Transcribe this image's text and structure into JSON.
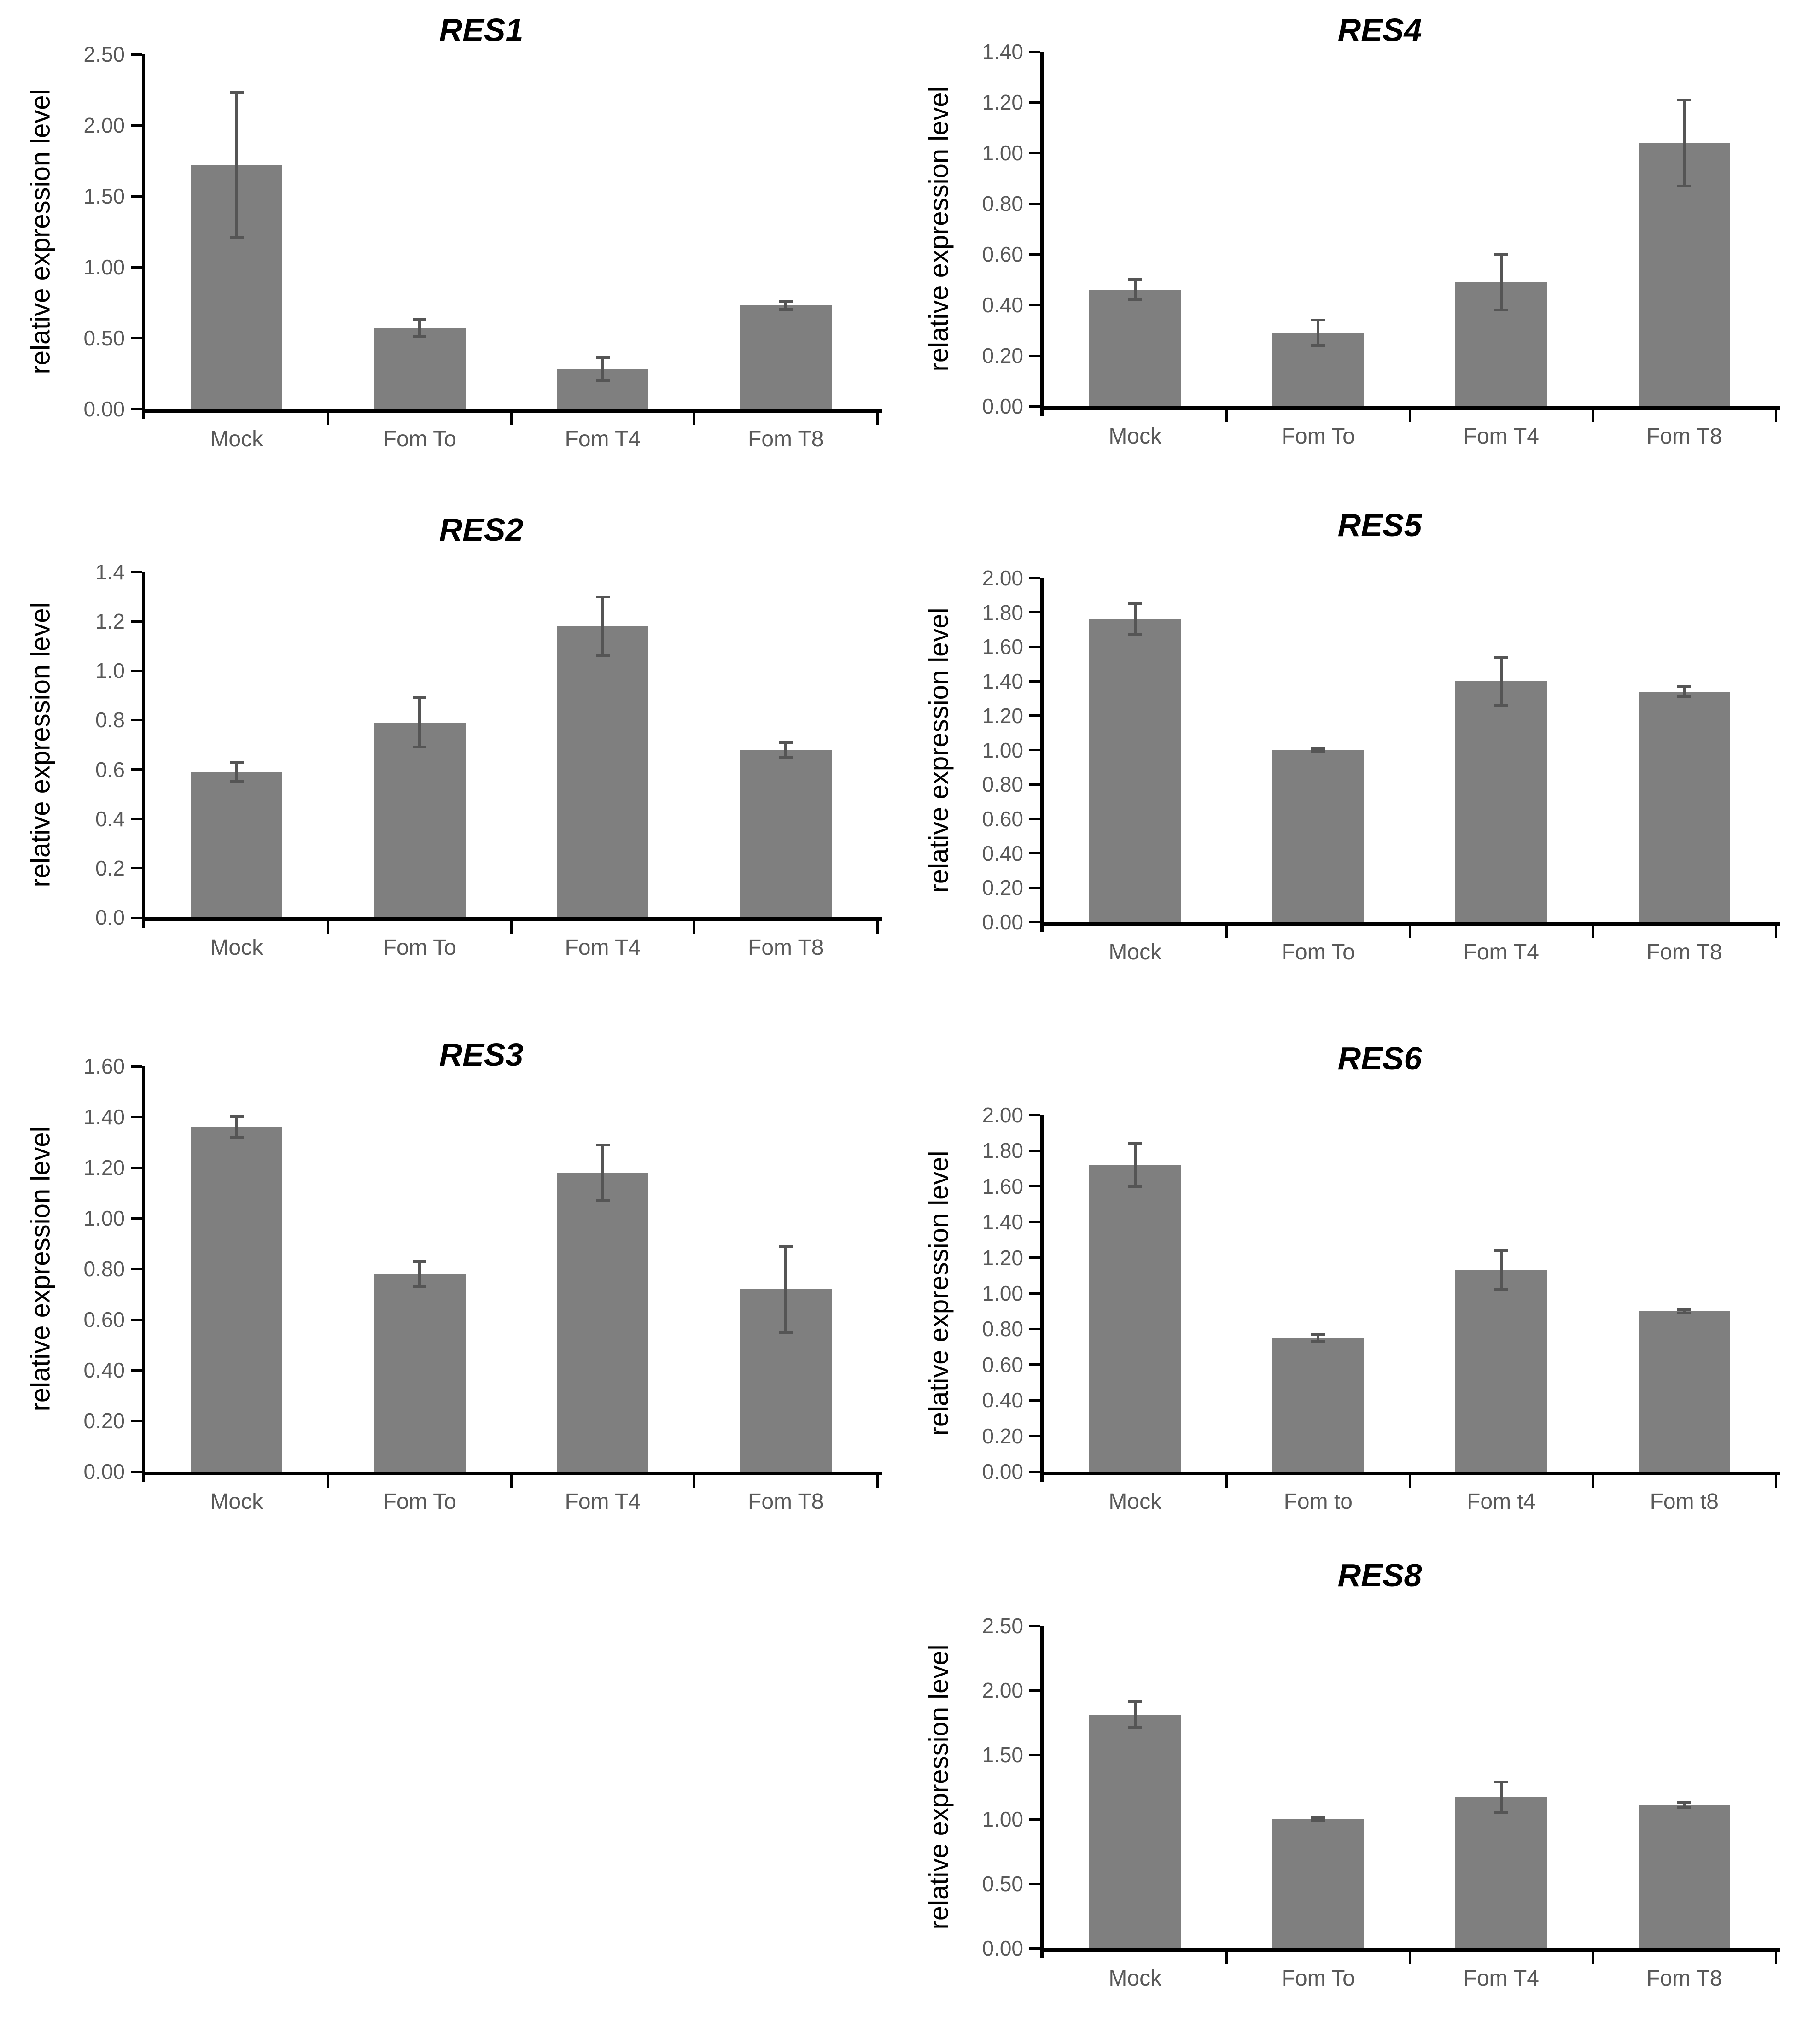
{
  "figure": {
    "background": "#ffffff",
    "y_axis_title": "relative expression level"
  },
  "colors": {
    "bar_fill": "#7f7f7f",
    "error_bar": "#555555",
    "axis_line": "#000000",
    "tick_label": "#595959",
    "category_label": "#595959",
    "title_color": "#000000"
  },
  "chart_data": [
    {
      "id": "RES1",
      "type": "bar",
      "title": "RES1",
      "ylabel": "relative expression level",
      "categories": [
        "Mock",
        "Fom To",
        "Fom T4",
        "Fom T8"
      ],
      "values": [
        1.72,
        0.57,
        0.28,
        0.73
      ],
      "errors": [
        0.51,
        0.06,
        0.08,
        0.03
      ],
      "ylim": [
        0,
        2.5
      ],
      "ytick_step": 0.5,
      "ytick_decimals": 2,
      "grid": false,
      "legend": "none"
    },
    {
      "id": "RES4",
      "type": "bar",
      "title": "RES4",
      "ylabel": "relative expression level",
      "categories": [
        "Mock",
        "Fom To",
        "Fom T4",
        "Fom T8"
      ],
      "values": [
        0.46,
        0.29,
        0.49,
        1.04
      ],
      "errors": [
        0.04,
        0.05,
        0.11,
        0.17
      ],
      "ylim": [
        0,
        1.4
      ],
      "ytick_step": 0.2,
      "ytick_decimals": 2,
      "grid": false,
      "legend": "none"
    },
    {
      "id": "RES2",
      "type": "bar",
      "title": "RES2",
      "ylabel": "relative expression level",
      "categories": [
        "Mock",
        "Fom To",
        "Fom T4",
        "Fom T8"
      ],
      "values": [
        0.59,
        0.79,
        1.18,
        0.68
      ],
      "errors": [
        0.04,
        0.1,
        0.12,
        0.03
      ],
      "ylim": [
        0,
        1.4
      ],
      "ytick_step": 0.2,
      "ytick_decimals": 1,
      "grid": false,
      "legend": "none"
    },
    {
      "id": "RES5",
      "type": "bar",
      "title": "RES5",
      "ylabel": "relative expression level",
      "categories": [
        "Mock",
        "Fom To",
        "Fom T4",
        "Fom T8"
      ],
      "values": [
        1.76,
        1.0,
        1.4,
        1.34
      ],
      "errors": [
        0.09,
        0.01,
        0.14,
        0.03
      ],
      "ylim": [
        0,
        2.0
      ],
      "ytick_step": 0.2,
      "ytick_decimals": 2,
      "grid": false,
      "legend": "none"
    },
    {
      "id": "RES3",
      "type": "bar",
      "title": "RES3",
      "ylabel": "relative expression level",
      "categories": [
        "Mock",
        "Fom To",
        "Fom T4",
        "Fom T8"
      ],
      "values": [
        1.36,
        0.78,
        1.18,
        0.72
      ],
      "errors": [
        0.04,
        0.05,
        0.11,
        0.17
      ],
      "ylim": [
        0,
        1.6
      ],
      "ytick_step": 0.2,
      "ytick_decimals": 2,
      "grid": false,
      "legend": "none"
    },
    {
      "id": "RES6",
      "type": "bar",
      "title": "RES6",
      "ylabel": "relative expression level",
      "categories": [
        "Mock",
        "Fom to",
        "Fom t4",
        "Fom t8"
      ],
      "values": [
        1.72,
        0.75,
        1.13,
        0.9
      ],
      "errors": [
        0.12,
        0.02,
        0.11,
        0.01
      ],
      "ylim": [
        0,
        2.0
      ],
      "ytick_step": 0.2,
      "ytick_decimals": 2,
      "grid": false,
      "legend": "none"
    },
    {
      "id": "RES8",
      "type": "bar",
      "title": "RES8",
      "ylabel": "relative expression level",
      "categories": [
        "Mock",
        "Fom To",
        "Fom T4",
        "Fom T8"
      ],
      "values": [
        1.81,
        1.0,
        1.17,
        1.11
      ],
      "errors": [
        0.1,
        0.01,
        0.12,
        0.02
      ],
      "ylim": [
        0,
        2.5
      ],
      "ytick_step": 0.5,
      "ytick_decimals": 2,
      "grid": false,
      "legend": "none"
    }
  ]
}
